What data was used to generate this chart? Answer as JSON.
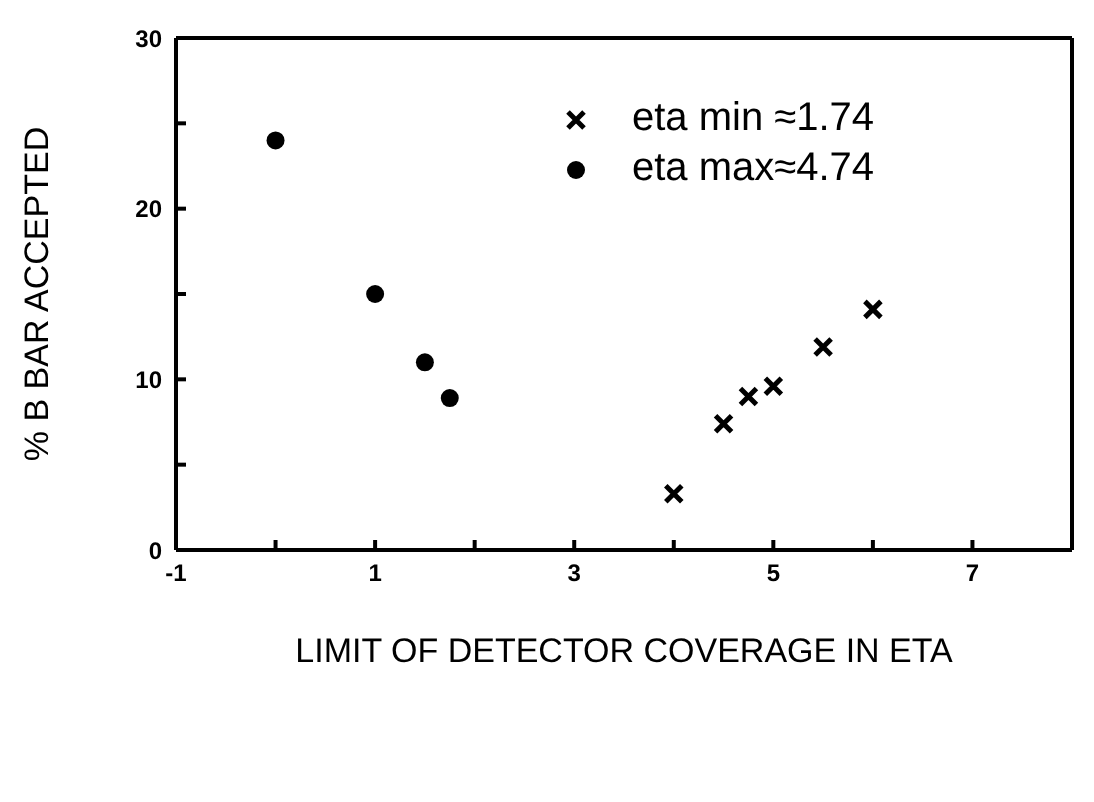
{
  "chart_data": {
    "type": "scatter",
    "xlabel": "LIMIT OF DETECTOR COVERAGE IN ETA",
    "ylabel": "% B BAR ACCEPTED",
    "xlim": [
      -1,
      8
    ],
    "xticks": [
      -1,
      {
        "value": 0,
        "label": null
      },
      1,
      {
        "value": 2,
        "label": null
      },
      3,
      {
        "value": 4,
        "label": null
      },
      5,
      {
        "value": 6,
        "label": null
      },
      7
    ],
    "ylim": [
      0,
      30
    ],
    "yticks": [
      0,
      {
        "value": 5,
        "label": null
      },
      10,
      {
        "value": 15,
        "label": null
      },
      20,
      {
        "value": 25,
        "label": null
      },
      30
    ],
    "grid": false,
    "legend": "top right",
    "series": [
      {
        "name": "eta min ≈1.74",
        "color": "#000000",
        "marker": "cross",
        "x": [
          4,
          4.5,
          4.75,
          5,
          5.5,
          6
        ],
        "values": [
          3.3,
          7.4,
          9.0,
          9.6,
          11.9,
          14.1
        ]
      },
      {
        "name": "eta max≈4.74",
        "color": "#000000",
        "marker": "circle",
        "x": [
          0,
          1,
          1.5,
          1.75
        ],
        "values": [
          24,
          15,
          11,
          8.9
        ]
      }
    ]
  }
}
